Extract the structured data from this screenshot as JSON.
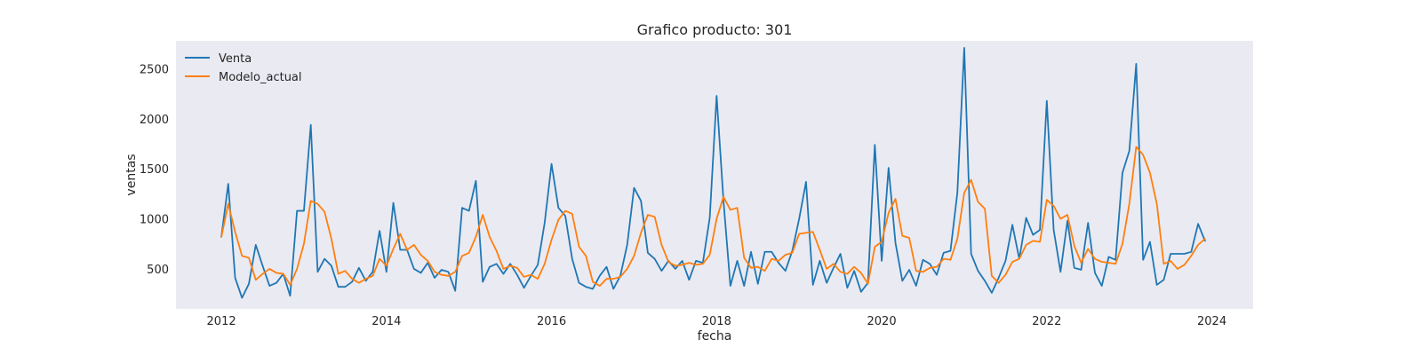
{
  "chart_data": {
    "type": "line",
    "title": "Grafico producto: 301",
    "xlabel": "fecha",
    "ylabel": "ventas",
    "xlim": [
      2011.45,
      2024.5
    ],
    "ylim": [
      100,
      2780
    ],
    "x_ticks": [
      2012,
      2014,
      2016,
      2018,
      2020,
      2022,
      2024
    ],
    "y_ticks": [
      500,
      1000,
      1500,
      2000,
      2500
    ],
    "grid": false,
    "legend": "top-left",
    "x_start": "2012-01",
    "x_frequency": "monthly",
    "series": [
      {
        "name": "Venta",
        "color": "#1f77b4",
        "values": [
          820,
          1350,
          410,
          210,
          350,
          740,
          530,
          330,
          360,
          450,
          230,
          1080,
          1080,
          1940,
          470,
          600,
          530,
          320,
          320,
          370,
          510,
          380,
          470,
          880,
          470,
          1160,
          690,
          690,
          500,
          460,
          560,
          410,
          490,
          470,
          280,
          1110,
          1080,
          1380,
          370,
          520,
          550,
          450,
          550,
          440,
          310,
          430,
          540,
          960,
          1550,
          1110,
          1030,
          600,
          360,
          320,
          300,
          430,
          520,
          300,
          430,
          740,
          1310,
          1180,
          660,
          600,
          480,
          580,
          500,
          580,
          390,
          580,
          560,
          1010,
          2230,
          1180,
          330,
          580,
          330,
          670,
          350,
          670,
          670,
          560,
          480,
          680,
          1000,
          1370,
          340,
          580,
          360,
          510,
          650,
          310,
          480,
          270,
          360,
          1740,
          580,
          1510,
          760,
          380,
          490,
          330,
          590,
          550,
          440,
          660,
          680,
          1260,
          2710,
          650,
          480,
          380,
          260,
          410,
          580,
          940,
          600,
          1010,
          840,
          890,
          2180,
          890,
          470,
          980,
          510,
          490,
          960,
          460,
          330,
          620,
          590,
          1460,
          1680,
          2550,
          590,
          770,
          340,
          390,
          650,
          650,
          650,
          670,
          950,
          780
        ]
      },
      {
        "name": "Modelo_actual",
        "color": "#ff7f0e",
        "values": [
          820,
          1150,
          870,
          630,
          610,
          390,
          450,
          500,
          460,
          450,
          340,
          500,
          750,
          1180,
          1150,
          1070,
          800,
          450,
          480,
          400,
          360,
          400,
          430,
          600,
          530,
          700,
          850,
          690,
          740,
          640,
          580,
          470,
          440,
          430,
          470,
          630,
          660,
          820,
          1040,
          820,
          680,
          500,
          530,
          510,
          420,
          440,
          400,
          550,
          790,
          990,
          1080,
          1050,
          720,
          630,
          370,
          330,
          400,
          400,
          420,
          500,
          630,
          860,
          1040,
          1020,
          740,
          570,
          530,
          540,
          560,
          540,
          550,
          640,
          1000,
          1220,
          1090,
          1110,
          610,
          510,
          520,
          480,
          600,
          580,
          640,
          660,
          850,
          860,
          870,
          690,
          500,
          550,
          470,
          450,
          520,
          460,
          350,
          720,
          770,
          1060,
          1200,
          830,
          810,
          480,
          470,
          510,
          520,
          600,
          590,
          800,
          1260,
          1390,
          1170,
          1100,
          430,
          360,
          440,
          570,
          600,
          740,
          780,
          770,
          1190,
          1130,
          1000,
          1040,
          730,
          560,
          700,
          600,
          570,
          560,
          550,
          750,
          1150,
          1720,
          1640,
          1460,
          1150,
          550,
          580,
          500,
          540,
          630,
          740,
          800
        ]
      }
    ]
  }
}
